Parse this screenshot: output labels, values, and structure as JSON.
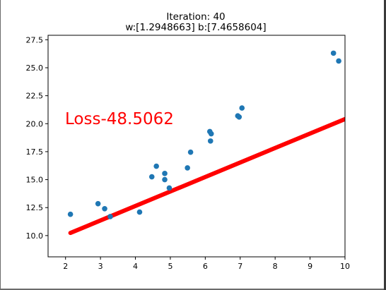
{
  "chart_data": {
    "type": "scatter",
    "title_line1": "Iteration: 40",
    "title_line2": "w:[1.2948663] b:[7.4658604]",
    "annotation": "Loss-48.5062",
    "xlim": [
      1.5,
      10
    ],
    "ylim": [
      8.1,
      27.9
    ],
    "x_ticks": [
      2,
      3,
      4,
      5,
      6,
      7,
      8,
      9,
      10
    ],
    "x_tick_labels": [
      "2",
      "3",
      "4",
      "5",
      "6",
      "7",
      "8",
      "9",
      "10"
    ],
    "y_ticks": [
      10.0,
      12.5,
      15.0,
      17.5,
      20.0,
      22.5,
      25.0,
      27.5
    ],
    "y_tick_labels": [
      "10.0",
      "12.5",
      "15.0",
      "17.5",
      "20.0",
      "22.5",
      "25.0",
      "27.5"
    ],
    "points": [
      {
        "x": 2.14,
        "y": 11.9
      },
      {
        "x": 2.93,
        "y": 12.85
      },
      {
        "x": 3.12,
        "y": 12.4
      },
      {
        "x": 3.28,
        "y": 11.7
      },
      {
        "x": 4.12,
        "y": 12.1
      },
      {
        "x": 4.47,
        "y": 15.25
      },
      {
        "x": 4.6,
        "y": 16.2
      },
      {
        "x": 4.84,
        "y": 15.55
      },
      {
        "x": 4.84,
        "y": 15.0
      },
      {
        "x": 4.97,
        "y": 14.25
      },
      {
        "x": 5.49,
        "y": 16.05
      },
      {
        "x": 5.58,
        "y": 17.45
      },
      {
        "x": 6.13,
        "y": 19.3
      },
      {
        "x": 6.17,
        "y": 19.1
      },
      {
        "x": 6.15,
        "y": 18.45
      },
      {
        "x": 6.93,
        "y": 20.7
      },
      {
        "x": 6.97,
        "y": 20.6
      },
      {
        "x": 7.05,
        "y": 21.4
      },
      {
        "x": 9.67,
        "y": 26.3
      },
      {
        "x": 9.82,
        "y": 25.6
      }
    ],
    "fit_line": {
      "w": 1.2948663,
      "b": 7.4658604,
      "x_start": 2.14,
      "color": "#ff0000"
    },
    "point_color": "#1f77b4",
    "grid": false
  }
}
